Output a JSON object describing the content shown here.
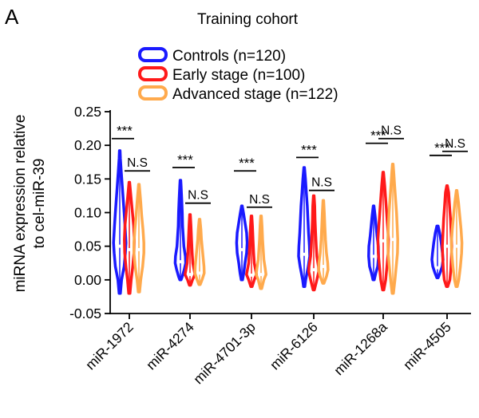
{
  "panel_label": "A",
  "chart_data": {
    "type": "violin",
    "title": "Training cohort",
    "xlabel": "",
    "ylabel_lines": [
      "miRNA expression relative",
      "to cel-miR-39"
    ],
    "ylim": [
      -0.05,
      0.25
    ],
    "yticks": [
      "0.25",
      "0.20",
      "0.15",
      "0.10",
      "0.05",
      "0.00",
      "-0.05"
    ],
    "ytick_values": [
      0.25,
      0.2,
      0.15,
      0.1,
      0.05,
      0.0,
      -0.05
    ],
    "legend_position": "top",
    "categories": [
      "miR-1972",
      "miR-4274",
      "miR-4701-3p",
      "miR-6126",
      "miR-1268a",
      "miR-4505"
    ],
    "series": [
      {
        "name": "Controls (n=120)",
        "color": "#1a1aff",
        "violins": [
          {
            "min": -0.02,
            "max": 0.192,
            "median": 0.05,
            "shape": [
              [
                -0.02,
                0.002
              ],
              [
                0.0,
                0.006
              ],
              [
                0.02,
                0.014
              ],
              [
                0.04,
                0.018
              ],
              [
                0.055,
                0.02
              ],
              [
                0.08,
                0.017
              ],
              [
                0.1,
                0.014
              ],
              [
                0.12,
                0.011
              ],
              [
                0.14,
                0.008
              ],
              [
                0.16,
                0.005
              ],
              [
                0.18,
                0.002
              ],
              [
                0.192,
                0.001
              ]
            ]
          },
          {
            "min": 0.0,
            "max": 0.148,
            "median": 0.027,
            "shape": [
              [
                0.0,
                0.002
              ],
              [
                0.005,
                0.006
              ],
              [
                0.015,
                0.012
              ],
              [
                0.025,
                0.017
              ],
              [
                0.035,
                0.016
              ],
              [
                0.05,
                0.011
              ],
              [
                0.065,
                0.009
              ],
              [
                0.08,
                0.007
              ],
              [
                0.1,
                0.006
              ],
              [
                0.12,
                0.004
              ],
              [
                0.14,
                0.002
              ],
              [
                0.148,
                0.001
              ]
            ]
          },
          {
            "min": 0.0,
            "max": 0.11,
            "median": 0.045,
            "shape": [
              [
                0.0,
                0.002
              ],
              [
                0.01,
                0.006
              ],
              [
                0.025,
                0.01
              ],
              [
                0.04,
                0.015
              ],
              [
                0.055,
                0.017
              ],
              [
                0.07,
                0.015
              ],
              [
                0.085,
                0.01
              ],
              [
                0.1,
                0.005
              ],
              [
                0.11,
                0.001
              ]
            ]
          },
          {
            "min": -0.01,
            "max": 0.167,
            "median": 0.038,
            "shape": [
              [
                -0.01,
                0.002
              ],
              [
                0.0,
                0.005
              ],
              [
                0.02,
                0.013
              ],
              [
                0.035,
                0.018
              ],
              [
                0.05,
                0.017
              ],
              [
                0.07,
                0.014
              ],
              [
                0.09,
                0.012
              ],
              [
                0.11,
                0.01
              ],
              [
                0.13,
                0.007
              ],
              [
                0.15,
                0.004
              ],
              [
                0.167,
                0.001
              ]
            ]
          },
          {
            "min": 0.0,
            "max": 0.11,
            "median": 0.035,
            "shape": [
              [
                0.0,
                0.002
              ],
              [
                0.01,
                0.007
              ],
              [
                0.02,
                0.013
              ],
              [
                0.035,
                0.016
              ],
              [
                0.05,
                0.015
              ],
              [
                0.065,
                0.011
              ],
              [
                0.08,
                0.008
              ],
              [
                0.095,
                0.005
              ],
              [
                0.11,
                0.001
              ]
            ]
          },
          {
            "min": 0.003,
            "max": 0.08,
            "median": 0.018,
            "shape": [
              [
                0.003,
                0.002
              ],
              [
                0.01,
                0.008
              ],
              [
                0.02,
                0.015
              ],
              [
                0.03,
                0.018
              ],
              [
                0.04,
                0.016
              ],
              [
                0.055,
                0.012
              ],
              [
                0.07,
                0.007
              ],
              [
                0.08,
                0.002
              ]
            ]
          }
        ]
      },
      {
        "name": "Early stage (n=100)",
        "color": "#ff1a1a",
        "violins": [
          {
            "min": -0.02,
            "max": 0.145,
            "median": 0.045,
            "shape": [
              [
                -0.02,
                0.002
              ],
              [
                0.0,
                0.006
              ],
              [
                0.02,
                0.011
              ],
              [
                0.04,
                0.015
              ],
              [
                0.06,
                0.016
              ],
              [
                0.08,
                0.014
              ],
              [
                0.1,
                0.01
              ],
              [
                0.12,
                0.006
              ],
              [
                0.145,
                0.001
              ]
            ]
          },
          {
            "min": -0.008,
            "max": 0.097,
            "median": 0.008,
            "shape": [
              [
                -0.008,
                0.002
              ],
              [
                0.0,
                0.008
              ],
              [
                0.008,
                0.016
              ],
              [
                0.015,
                0.013
              ],
              [
                0.025,
                0.009
              ],
              [
                0.04,
                0.007
              ],
              [
                0.06,
                0.005
              ],
              [
                0.08,
                0.003
              ],
              [
                0.097,
                0.001
              ]
            ]
          },
          {
            "min": -0.01,
            "max": 0.095,
            "median": 0.007,
            "shape": [
              [
                -0.01,
                0.002
              ],
              [
                0.0,
                0.009
              ],
              [
                0.008,
                0.016
              ],
              [
                0.015,
                0.013
              ],
              [
                0.025,
                0.009
              ],
              [
                0.04,
                0.007
              ],
              [
                0.06,
                0.005
              ],
              [
                0.08,
                0.003
              ],
              [
                0.095,
                0.001
              ]
            ]
          },
          {
            "min": -0.015,
            "max": 0.125,
            "median": 0.015,
            "shape": [
              [
                -0.015,
                0.002
              ],
              [
                0.0,
                0.01
              ],
              [
                0.012,
                0.016
              ],
              [
                0.02,
                0.015
              ],
              [
                0.035,
                0.01
              ],
              [
                0.05,
                0.008
              ],
              [
                0.07,
                0.006
              ],
              [
                0.09,
                0.004
              ],
              [
                0.11,
                0.003
              ],
              [
                0.125,
                0.001
              ]
            ]
          },
          {
            "min": -0.015,
            "max": 0.16,
            "median": 0.058,
            "shape": [
              [
                -0.015,
                0.002
              ],
              [
                0.0,
                0.008
              ],
              [
                0.02,
                0.012
              ],
              [
                0.04,
                0.016
              ],
              [
                0.06,
                0.017
              ],
              [
                0.08,
                0.014
              ],
              [
                0.1,
                0.011
              ],
              [
                0.12,
                0.008
              ],
              [
                0.14,
                0.005
              ],
              [
                0.16,
                0.001
              ]
            ]
          },
          {
            "min": -0.01,
            "max": 0.14,
            "median": 0.05,
            "shape": [
              [
                -0.01,
                0.002
              ],
              [
                0.0,
                0.009
              ],
              [
                0.015,
                0.012
              ],
              [
                0.035,
                0.014
              ],
              [
                0.05,
                0.015
              ],
              [
                0.07,
                0.013
              ],
              [
                0.09,
                0.011
              ],
              [
                0.11,
                0.008
              ],
              [
                0.13,
                0.005
              ],
              [
                0.14,
                0.001
              ]
            ]
          }
        ]
      },
      {
        "name": "Advanced stage (n=122)",
        "color": "#ffaa4d",
        "violins": [
          {
            "min": -0.018,
            "max": 0.142,
            "median": 0.045,
            "shape": [
              [
                -0.018,
                0.002
              ],
              [
                0.0,
                0.006
              ],
              [
                0.02,
                0.012
              ],
              [
                0.04,
                0.016
              ],
              [
                0.055,
                0.016
              ],
              [
                0.075,
                0.013
              ],
              [
                0.095,
                0.009
              ],
              [
                0.115,
                0.006
              ],
              [
                0.142,
                0.001
              ]
            ]
          },
          {
            "min": -0.007,
            "max": 0.09,
            "median": 0.01,
            "shape": [
              [
                -0.007,
                0.002
              ],
              [
                0.0,
                0.008
              ],
              [
                0.01,
                0.015
              ],
              [
                0.02,
                0.014
              ],
              [
                0.03,
                0.012
              ],
              [
                0.045,
                0.009
              ],
              [
                0.06,
                0.006
              ],
              [
                0.075,
                0.004
              ],
              [
                0.09,
                0.001
              ]
            ]
          },
          {
            "min": -0.013,
            "max": 0.095,
            "median": 0.008,
            "shape": [
              [
                -0.013,
                0.002
              ],
              [
                0.0,
                0.009
              ],
              [
                0.008,
                0.016
              ],
              [
                0.018,
                0.013
              ],
              [
                0.03,
                0.009
              ],
              [
                0.045,
                0.007
              ],
              [
                0.06,
                0.005
              ],
              [
                0.08,
                0.003
              ],
              [
                0.095,
                0.001
              ]
            ]
          },
          {
            "min": -0.005,
            "max": 0.118,
            "median": 0.02,
            "shape": [
              [
                -0.005,
                0.002
              ],
              [
                0.005,
                0.01
              ],
              [
                0.015,
                0.015
              ],
              [
                0.025,
                0.014
              ],
              [
                0.04,
                0.01
              ],
              [
                0.06,
                0.007
              ],
              [
                0.08,
                0.005
              ],
              [
                0.1,
                0.003
              ],
              [
                0.118,
                0.001
              ]
            ]
          },
          {
            "min": -0.02,
            "max": 0.172,
            "median": 0.06,
            "shape": [
              [
                -0.02,
                0.002
              ],
              [
                0.0,
                0.007
              ],
              [
                0.02,
                0.011
              ],
              [
                0.04,
                0.015
              ],
              [
                0.06,
                0.016
              ],
              [
                0.08,
                0.014
              ],
              [
                0.1,
                0.012
              ],
              [
                0.12,
                0.009
              ],
              [
                0.14,
                0.006
              ],
              [
                0.16,
                0.003
              ],
              [
                0.172,
                0.001
              ]
            ]
          },
          {
            "min": -0.01,
            "max": 0.133,
            "median": 0.05,
            "shape": [
              [
                -0.01,
                0.002
              ],
              [
                0.0,
                0.007
              ],
              [
                0.02,
                0.012
              ],
              [
                0.04,
                0.016
              ],
              [
                0.055,
                0.017
              ],
              [
                0.075,
                0.014
              ],
              [
                0.095,
                0.01
              ],
              [
                0.115,
                0.006
              ],
              [
                0.133,
                0.001
              ]
            ]
          }
        ]
      }
    ],
    "significance": [
      {
        "category": "miR-1972",
        "controls_vs_early": "***",
        "early_vs_advanced": "N.S"
      },
      {
        "category": "miR-4274",
        "controls_vs_early": "***",
        "early_vs_advanced": "N.S"
      },
      {
        "category": "miR-4701-3p",
        "controls_vs_early": "***",
        "early_vs_advanced": "N.S"
      },
      {
        "category": "miR-6126",
        "controls_vs_early": "***",
        "early_vs_advanced": "N.S"
      },
      {
        "category": "miR-1268a",
        "controls_vs_early": "***",
        "early_vs_advanced": "N.S"
      },
      {
        "category": "miR-4505",
        "controls_vs_early": "***",
        "early_vs_advanced": "N.S"
      }
    ],
    "sig_bar_levels": [
      {
        "a": 0.21,
        "b": 0.162
      },
      {
        "a": 0.167,
        "b": 0.114
      },
      {
        "a": 0.162,
        "b": 0.108
      },
      {
        "a": 0.182,
        "b": 0.133
      },
      {
        "a": 0.203,
        "b": 0.21
      },
      {
        "a": 0.185,
        "b": 0.191
      }
    ]
  }
}
